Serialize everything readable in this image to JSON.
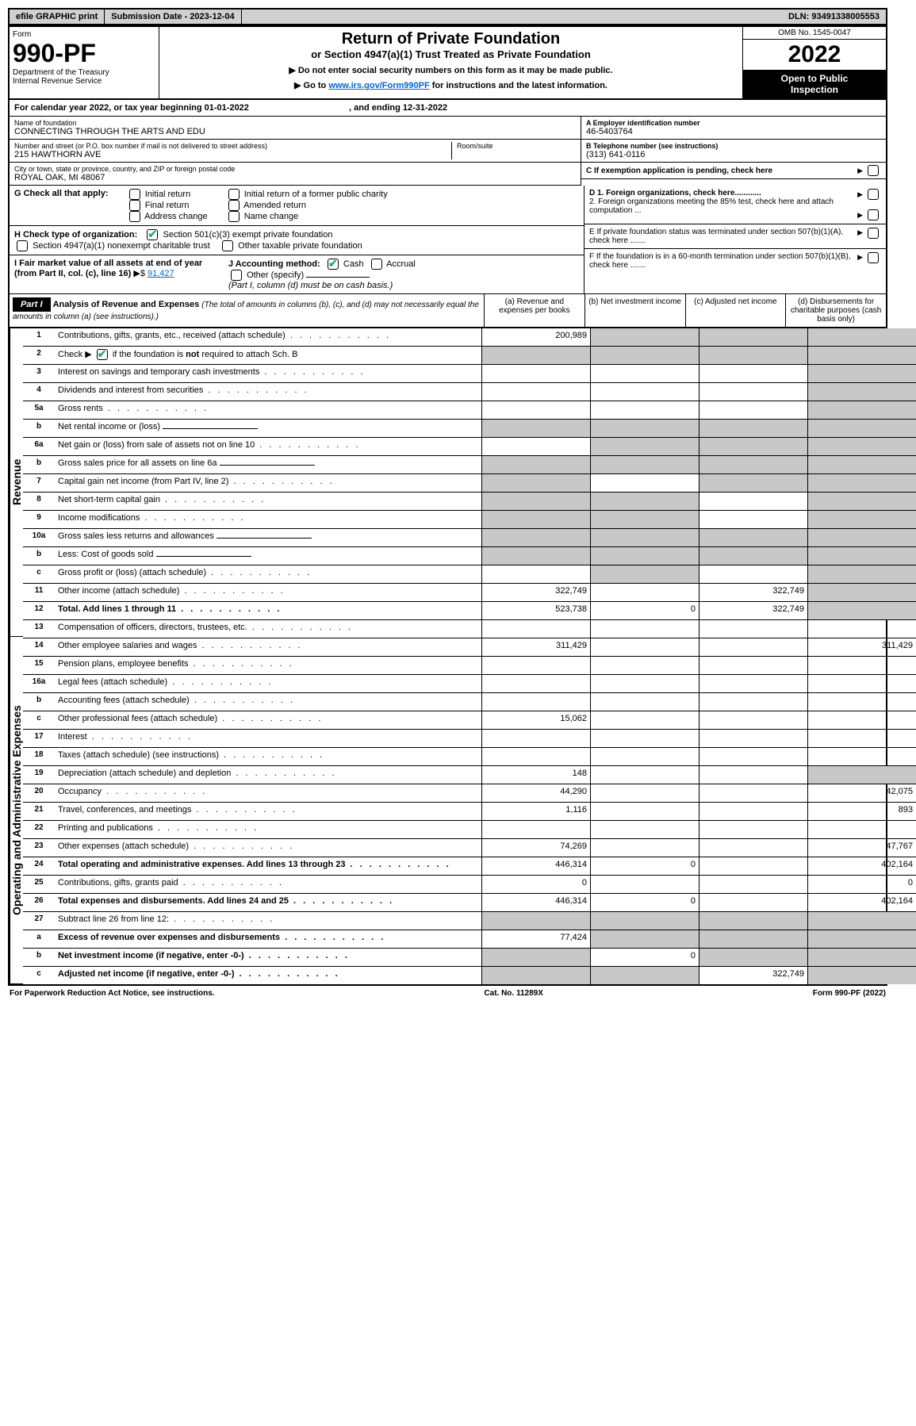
{
  "topbar": {
    "efile": "efile GRAPHIC print",
    "submission": "Submission Date - 2023-12-04",
    "dln": "DLN: 93491338005553"
  },
  "header": {
    "form_label": "Form",
    "form_number": "990-PF",
    "dept": "Department of the Treasury",
    "irs": "Internal Revenue Service",
    "title": "Return of Private Foundation",
    "subtitle": "or Section 4947(a)(1) Trust Treated as Private Foundation",
    "instr1": "▶ Do not enter social security numbers on this form as it may be made public.",
    "instr2_pre": "▶ Go to ",
    "instr2_link": "www.irs.gov/Form990PF",
    "instr2_post": " for instructions and the latest information.",
    "omb": "OMB No. 1545-0047",
    "year": "2022",
    "open1": "Open to Public",
    "open2": "Inspection"
  },
  "calyear": {
    "text_a": "For calendar year 2022, or tax year beginning 01-01-2022",
    "text_b": ", and ending 12-31-2022"
  },
  "info": {
    "name_lbl": "Name of foundation",
    "name": "CONNECTING THROUGH THE ARTS AND EDU",
    "addr_lbl": "Number and street (or P.O. box number if mail is not delivered to street address)",
    "addr": "215 HAWTHORN AVE",
    "room_lbl": "Room/suite",
    "city_lbl": "City or town, state or province, country, and ZIP or foreign postal code",
    "city": "ROYAL OAK, MI  48067",
    "a_lbl": "A Employer identification number",
    "a_val": "46-5403764",
    "b_lbl": "B Telephone number (see instructions)",
    "b_val": "(313) 641-0116",
    "c_lbl": "C If exemption application is pending, check here",
    "d1": "D 1. Foreign organizations, check here............",
    "d2": "2. Foreign organizations meeting the 85% test, check here and attach computation ...",
    "e": "E  If private foundation status was terminated under section 507(b)(1)(A), check here .......",
    "f": "F  If the foundation is in a 60-month termination under section 507(b)(1)(B), check here .......",
    "g_lbl": "G Check all that apply:",
    "g_opts": [
      "Initial return",
      "Final return",
      "Address change",
      "Initial return of a former public charity",
      "Amended return",
      "Name change"
    ],
    "h_lbl": "H Check type of organization:",
    "h1": "Section 501(c)(3) exempt private foundation",
    "h2": "Section 4947(a)(1) nonexempt charitable trust",
    "h3": "Other taxable private foundation",
    "i_lbl": "I Fair market value of all assets at end of year (from Part II, col. (c), line 16)",
    "i_val": "91,427",
    "j_lbl": "J Accounting method:",
    "j_cash": "Cash",
    "j_acc": "Accrual",
    "j_other": "Other (specify)",
    "j_note": "(Part I, column (d) must be on cash basis.)"
  },
  "part1": {
    "label": "Part I",
    "title": "Analysis of Revenue and Expenses",
    "note": " (The total of amounts in columns (b), (c), and (d) may not necessarily equal the amounts in column (a) (see instructions).)",
    "col_a": "(a) Revenue and expenses per books",
    "col_b": "(b) Net investment income",
    "col_c": "(c) Adjusted net income",
    "col_d": "(d) Disbursements for charitable purposes (cash basis only)",
    "vlabels": {
      "rev": "Revenue",
      "exp": "Operating and Administrative Expenses"
    }
  },
  "rows": [
    {
      "n": "1",
      "d": "Contributions, gifts, grants, etc., received (attach schedule)",
      "a": "200,989",
      "bgray": true,
      "cgray": true,
      "dgray": true
    },
    {
      "n": "2",
      "d": "Check ▶ ✔ if the foundation is not required to attach Sch. B",
      "nodots": true,
      "agray": true,
      "bgray": true,
      "cgray": true,
      "dgray": true,
      "chk": true
    },
    {
      "n": "3",
      "d": "Interest on savings and temporary cash investments",
      "dgray": true
    },
    {
      "n": "4",
      "d": "Dividends and interest from securities",
      "dgray": true
    },
    {
      "n": "5a",
      "d": "Gross rents",
      "dgray": true
    },
    {
      "n": "b",
      "d": "Net rental income or (loss)",
      "sub": true,
      "agray": true,
      "bgray": true,
      "cgray": true,
      "dgray": true
    },
    {
      "n": "6a",
      "d": "Net gain or (loss) from sale of assets not on line 10",
      "bgray": true,
      "cgray": true,
      "dgray": true
    },
    {
      "n": "b",
      "d": "Gross sales price for all assets on line 6a",
      "sub": true,
      "agray": true,
      "bgray": true,
      "cgray": true,
      "dgray": true
    },
    {
      "n": "7",
      "d": "Capital gain net income (from Part IV, line 2)",
      "agray": true,
      "cgray": true,
      "dgray": true
    },
    {
      "n": "8",
      "d": "Net short-term capital gain",
      "agray": true,
      "bgray": true,
      "dgray": true
    },
    {
      "n": "9",
      "d": "Income modifications",
      "agray": true,
      "bgray": true,
      "dgray": true
    },
    {
      "n": "10a",
      "d": "Gross sales less returns and allowances",
      "sub": true,
      "agray": true,
      "bgray": true,
      "cgray": true,
      "dgray": true
    },
    {
      "n": "b",
      "d": "Less: Cost of goods sold",
      "sub": true,
      "agray": true,
      "bgray": true,
      "cgray": true,
      "dgray": true
    },
    {
      "n": "c",
      "d": "Gross profit or (loss) (attach schedule)",
      "bgray": true,
      "dgray": true
    },
    {
      "n": "11",
      "d": "Other income (attach schedule)",
      "a": "322,749",
      "c": "322,749",
      "dgray": true
    },
    {
      "n": "12",
      "d": "Total. Add lines 1 through 11",
      "bold": true,
      "a": "523,738",
      "b": "0",
      "c": "322,749",
      "dgray": true
    }
  ],
  "erows": [
    {
      "n": "13",
      "d": "Compensation of officers, directors, trustees, etc."
    },
    {
      "n": "14",
      "d": "Other employee salaries and wages",
      "a": "311,429",
      "dv": "311,429"
    },
    {
      "n": "15",
      "d": "Pension plans, employee benefits"
    },
    {
      "n": "16a",
      "d": "Legal fees (attach schedule)"
    },
    {
      "n": "b",
      "d": "Accounting fees (attach schedule)"
    },
    {
      "n": "c",
      "d": "Other professional fees (attach schedule)",
      "a": "15,062"
    },
    {
      "n": "17",
      "d": "Interest"
    },
    {
      "n": "18",
      "d": "Taxes (attach schedule) (see instructions)"
    },
    {
      "n": "19",
      "d": "Depreciation (attach schedule) and depletion",
      "a": "148",
      "dgray": true
    },
    {
      "n": "20",
      "d": "Occupancy",
      "a": "44,290",
      "dv": "42,075"
    },
    {
      "n": "21",
      "d": "Travel, conferences, and meetings",
      "a": "1,116",
      "dv": "893"
    },
    {
      "n": "22",
      "d": "Printing and publications"
    },
    {
      "n": "23",
      "d": "Other expenses (attach schedule)",
      "a": "74,269",
      "dv": "47,767"
    },
    {
      "n": "24",
      "d": "Total operating and administrative expenses. Add lines 13 through 23",
      "bold": true,
      "a": "446,314",
      "b": "0",
      "dv": "402,164"
    },
    {
      "n": "25",
      "d": "Contributions, gifts, grants paid",
      "a": "0",
      "dgray": false,
      "dv": "0"
    },
    {
      "n": "26",
      "d": "Total expenses and disbursements. Add lines 24 and 25",
      "bold": true,
      "a": "446,314",
      "b": "0",
      "dv": "402,164"
    },
    {
      "n": "27",
      "d": "Subtract line 26 from line 12:",
      "agray": true,
      "bgray": true,
      "cgray": true,
      "dgray": true
    },
    {
      "n": "a",
      "d": "Excess of revenue over expenses and disbursements",
      "bold": true,
      "a": "77,424",
      "bgray": true,
      "cgray": true,
      "dgray": true
    },
    {
      "n": "b",
      "d": "Net investment income (if negative, enter -0-)",
      "bold": true,
      "agray": true,
      "b": "0",
      "cgray": true,
      "dgray": true
    },
    {
      "n": "c",
      "d": "Adjusted net income (if negative, enter -0-)",
      "bold": true,
      "agray": true,
      "bgray": true,
      "c": "322,749",
      "dgray": true
    }
  ],
  "footer": {
    "left": "For Paperwork Reduction Act Notice, see instructions.",
    "mid": "Cat. No. 11289X",
    "right": "Form 990-PF (2022)"
  }
}
